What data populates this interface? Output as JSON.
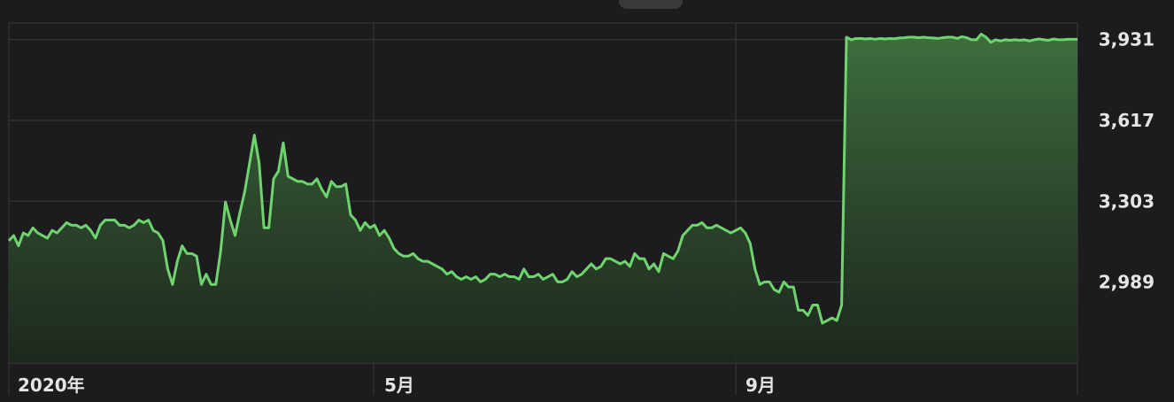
{
  "chart_data": {
    "type": "area",
    "title": "",
    "xlabel": "",
    "ylabel": "",
    "x_tick_labels": [
      "2020年",
      "5月",
      "9月"
    ],
    "y_tick_labels": [
      "3,931",
      "3,617",
      "3,303",
      "2,989"
    ],
    "y_ticks": [
      3931,
      3617,
      3303,
      2989
    ],
    "ylim": [
      2675,
      3995
    ],
    "grid": true,
    "colors": {
      "line": "#6fd46f",
      "fill_top": "#3e6e3e",
      "fill_bottom": "#1e2a1e",
      "grid": "#3a3a3c",
      "background": "#1c1c1e"
    },
    "series": [
      {
        "values": [
          3150,
          3170,
          3130,
          3180,
          3170,
          3200,
          3180,
          3170,
          3160,
          3190,
          3180,
          3200,
          3220,
          3210,
          3210,
          3200,
          3210,
          3190,
          3160,
          3210,
          3230,
          3230,
          3230,
          3210,
          3210,
          3200,
          3210,
          3230,
          3220,
          3230,
          3190,
          3180,
          3150,
          3040,
          2980,
          3070,
          3130,
          3100,
          3100,
          3090,
          2980,
          3020,
          2980,
          2980,
          3110,
          3300,
          3230,
          3170,
          3260,
          3340,
          3450,
          3560,
          3450,
          3200,
          3200,
          3390,
          3420,
          3530,
          3400,
          3390,
          3380,
          3380,
          3370,
          3370,
          3390,
          3350,
          3320,
          3380,
          3360,
          3360,
          3370,
          3250,
          3230,
          3190,
          3220,
          3200,
          3210,
          3170,
          3190,
          3160,
          3120,
          3100,
          3090,
          3090,
          3100,
          3080,
          3070,
          3070,
          3060,
          3050,
          3040,
          3020,
          3030,
          3010,
          3000,
          3010,
          3000,
          3010,
          2990,
          3000,
          3020,
          3020,
          3010,
          3020,
          3010,
          3010,
          3000,
          3040,
          3010,
          3010,
          3020,
          3000,
          3010,
          3020,
          2990,
          2990,
          3000,
          3030,
          3010,
          3020,
          3040,
          3060,
          3040,
          3050,
          3080,
          3080,
          3070,
          3060,
          3070,
          3050,
          3100,
          3080,
          3080,
          3040,
          3060,
          3030,
          3100,
          3090,
          3080,
          3110,
          3170,
          3190,
          3210,
          3210,
          3220,
          3200,
          3200,
          3210,
          3200,
          3190,
          3180,
          3190,
          3200,
          3180,
          3140,
          3040,
          2980,
          2990,
          2990,
          2960,
          2950,
          2990,
          2970,
          2970,
          2880,
          2880,
          2860,
          2900,
          2900,
          2830,
          2840,
          2850,
          2840,
          2900,
          3940,
          3930,
          3935,
          3935,
          3933,
          3935,
          3932,
          3935,
          3933,
          3935,
          3934,
          3937,
          3938,
          3940,
          3940,
          3938,
          3940,
          3938,
          3937,
          3935,
          3938,
          3940,
          3940,
          3935,
          3942,
          3938,
          3930,
          3930,
          3952,
          3940,
          3920,
          3930,
          3925,
          3930,
          3928,
          3930,
          3928,
          3930,
          3925,
          3930,
          3933,
          3930,
          3928,
          3933,
          3930,
          3930,
          3932,
          3932,
          3932
        ]
      }
    ],
    "x_tick_indices": [
      0,
      88,
      179
    ]
  }
}
